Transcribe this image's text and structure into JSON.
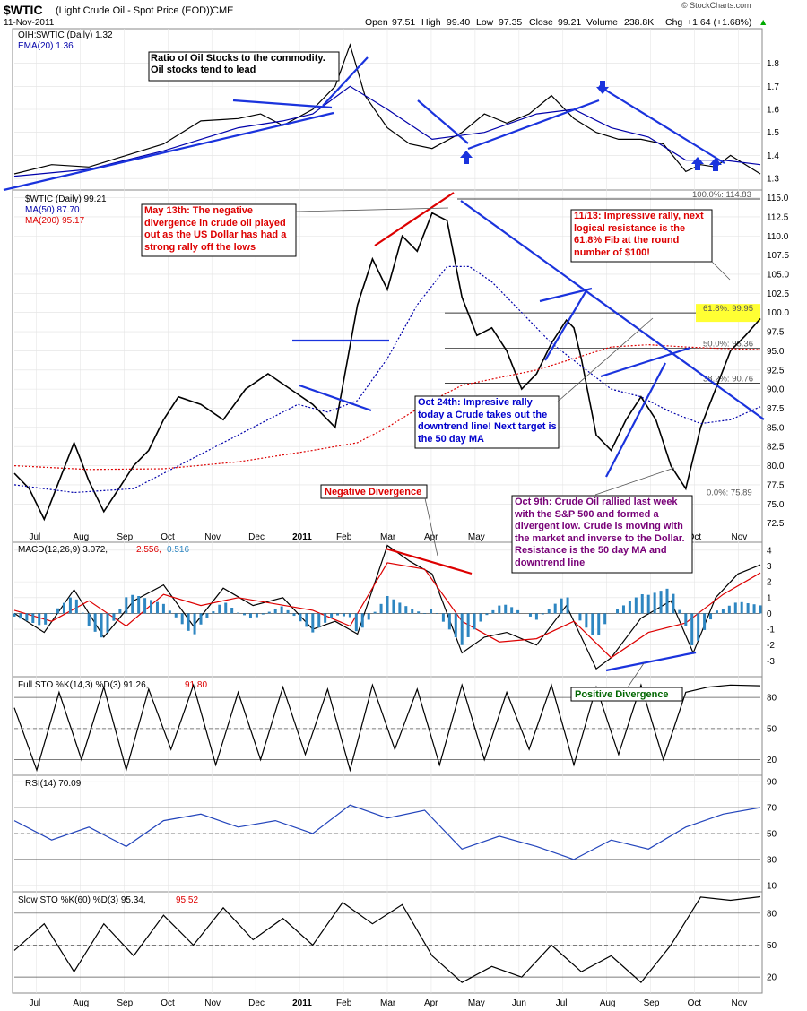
{
  "header": {
    "symbol": "$WTIC",
    "name": "(Light Crude Oil - Spot Price (EOD))",
    "exchange": "CME",
    "date": "11-Nov-2011",
    "open_label": "Open",
    "open": "97.51",
    "high_label": "High",
    "high": "99.40",
    "low_label": "Low",
    "low": "97.35",
    "close_label": "Close",
    "close": "99.21",
    "volume_label": "Volume",
    "volume": "238.8K",
    "chg_label": "Chg",
    "chg": "+1.64 (+1.68%)",
    "chg_arrow": "▲",
    "watermark": "© StockCharts.com"
  },
  "x_axis": {
    "months": [
      "Jul",
      "Aug",
      "Sep",
      "Oct",
      "Nov",
      "Dec",
      "2011",
      "Feb",
      "Mar",
      "Apr",
      "May",
      "Jun",
      "Jul",
      "Aug",
      "Sep",
      "Oct",
      "Nov"
    ]
  },
  "colors": {
    "price_up": "#000000",
    "price_down": "#cc0000",
    "ma50": "#0000aa",
    "ma200": "#dd0000",
    "trend": "#1a33dd",
    "annot_red": "#dd0000",
    "annot_blue": "#0000cc",
    "annot_purple": "#770077",
    "annot_green": "#006600",
    "macd_hist": "#2e86c1",
    "rsi_line": "#2244bb",
    "fib_highlight": "#ffff33"
  },
  "chart_data": [
    {
      "type": "line",
      "panel": "ratio",
      "legend": [
        "OIH:$WTIC (Daily) 1.32",
        "EMA(20) 1.36"
      ],
      "ylim": [
        1.25,
        1.95
      ],
      "yticks": [
        1.3,
        1.4,
        1.5,
        1.6,
        1.7,
        1.8
      ],
      "series": [
        {
          "name": "OIH:$WTIC (Daily)",
          "x": [
            0,
            0.05,
            0.1,
            0.15,
            0.2,
            0.25,
            0.3,
            0.33,
            0.36,
            0.4,
            0.43,
            0.45,
            0.47,
            0.5,
            0.53,
            0.56,
            0.6,
            0.63,
            0.66,
            0.69,
            0.72,
            0.75,
            0.78,
            0.81,
            0.84,
            0.87,
            0.9,
            0.92,
            0.94,
            0.96,
            0.98,
            1.0
          ],
          "values": [
            1.32,
            1.36,
            1.35,
            1.4,
            1.45,
            1.55,
            1.56,
            1.58,
            1.53,
            1.6,
            1.7,
            1.88,
            1.66,
            1.52,
            1.45,
            1.43,
            1.5,
            1.58,
            1.54,
            1.58,
            1.66,
            1.56,
            1.5,
            1.47,
            1.47,
            1.45,
            1.33,
            1.36,
            1.35,
            1.4,
            1.36,
            1.32
          ]
        },
        {
          "name": "EMA(20)",
          "x": [
            0,
            0.1,
            0.2,
            0.3,
            0.36,
            0.4,
            0.45,
            0.5,
            0.56,
            0.63,
            0.7,
            0.75,
            0.8,
            0.85,
            0.9,
            0.95,
            1.0
          ],
          "values": [
            1.31,
            1.34,
            1.42,
            1.52,
            1.55,
            1.58,
            1.7,
            1.6,
            1.47,
            1.5,
            1.58,
            1.6,
            1.52,
            1.48,
            1.38,
            1.38,
            1.36
          ]
        }
      ],
      "annotations": [
        "Ratio of Oil Stocks to the commodity.",
        "Oil stocks tend to lead"
      ]
    },
    {
      "type": "line",
      "panel": "price",
      "legend": [
        "$WTIC (Daily) 99.21",
        "MA(50) 87.70",
        "MA(200) 95.17"
      ],
      "ylim": [
        70,
        116
      ],
      "yticks": [
        72.5,
        75.0,
        77.5,
        80.0,
        82.5,
        85.0,
        87.5,
        90.0,
        92.5,
        95.0,
        97.5,
        100.0,
        102.5,
        105.0,
        107.5,
        110.0,
        112.5,
        115.0
      ],
      "fib_levels": [
        {
          "label": "100.0%: 114.83",
          "value": 114.83
        },
        {
          "label": "61.8%: 99.95",
          "value": 99.95
        },
        {
          "label": "50.0%: 95.36",
          "value": 95.36
        },
        {
          "label": "38.2%: 90.76",
          "value": 90.76
        },
        {
          "label": "0.0%: 75.89",
          "value": 75.89
        }
      ],
      "series": [
        {
          "name": "$WTIC (Daily)",
          "x": [
            0,
            0.02,
            0.04,
            0.06,
            0.08,
            0.1,
            0.12,
            0.14,
            0.16,
            0.18,
            0.2,
            0.22,
            0.25,
            0.28,
            0.31,
            0.34,
            0.37,
            0.4,
            0.43,
            0.46,
            0.48,
            0.5,
            0.52,
            0.54,
            0.56,
            0.58,
            0.6,
            0.62,
            0.64,
            0.66,
            0.68,
            0.7,
            0.72,
            0.74,
            0.75,
            0.76,
            0.78,
            0.8,
            0.82,
            0.84,
            0.86,
            0.88,
            0.9,
            0.92,
            0.94,
            0.96,
            0.98,
            1.0
          ],
          "values": [
            79,
            77,
            73,
            78,
            83,
            78,
            74,
            77,
            80,
            82,
            86,
            89,
            88,
            86,
            90,
            92,
            90,
            88,
            85,
            101,
            107,
            103,
            110,
            108,
            113,
            112,
            102,
            97,
            98,
            95,
            90,
            92,
            96,
            99,
            98,
            94,
            84,
            82,
            86,
            89,
            86,
            80,
            77,
            85,
            90,
            95,
            97,
            99.2
          ]
        },
        {
          "name": "MA(50)",
          "x": [
            0,
            0.08,
            0.16,
            0.24,
            0.32,
            0.38,
            0.42,
            0.46,
            0.5,
            0.54,
            0.58,
            0.61,
            0.64,
            0.68,
            0.72,
            0.76,
            0.8,
            0.84,
            0.88,
            0.92,
            0.96,
            1.0
          ],
          "values": [
            77.5,
            76.5,
            77,
            81,
            85,
            88,
            87,
            88.5,
            94,
            101,
            106,
            106,
            104,
            100,
            96,
            93,
            90,
            89,
            87,
            85.5,
            86,
            87.7
          ]
        },
        {
          "name": "MA(200)",
          "x": [
            0,
            0.1,
            0.2,
            0.3,
            0.4,
            0.46,
            0.5,
            0.55,
            0.6,
            0.65,
            0.7,
            0.75,
            0.8,
            0.85,
            0.9,
            0.95,
            1.0
          ],
          "values": [
            80,
            79.5,
            79.6,
            80.5,
            82,
            83,
            85,
            88,
            90.5,
            91.5,
            92.5,
            94,
            95.5,
            95.8,
            95.5,
            95.3,
            95.17
          ]
        }
      ],
      "annotations": [
        "May 13th: The negative divergence in crude oil played out as the US Dollar has had a strong rally off the lows",
        "11/13: Impressive rally, next logical resistance is the 61.8% Fib at the round number of $100!",
        "Oct 24th: Impresive rally today a Crude takes out the downtrend line! Next target is the 50 day MA",
        "Oct 9th: Crude Oil rallied last week with the S&P 500 and formed a divergent low. Crude is moving with the market and inverse to the Dollar. Resistance is the 50 day MA and downtrend line",
        "Negative Divergence",
        "Positive Divergence"
      ]
    },
    {
      "type": "line",
      "panel": "macd",
      "legend": [
        "MACD(12,26,9) 3.072,",
        "2.556,",
        "0.516"
      ],
      "ylim": [
        -4,
        4.5
      ],
      "yticks": [
        -3,
        -2,
        -1,
        0,
        1,
        2,
        3,
        4
      ],
      "series": [
        {
          "name": "MACD",
          "x": [
            0,
            0.04,
            0.08,
            0.12,
            0.16,
            0.2,
            0.24,
            0.28,
            0.32,
            0.36,
            0.4,
            0.43,
            0.46,
            0.5,
            0.53,
            0.56,
            0.6,
            0.63,
            0.66,
            0.7,
            0.74,
            0.78,
            0.8,
            0.84,
            0.88,
            0.91,
            0.94,
            0.97,
            1.0
          ],
          "values": [
            0,
            -1.2,
            1.5,
            -1.5,
            0.8,
            1.8,
            -0.8,
            1.6,
            0.5,
            1.0,
            -1.0,
            -0.5,
            -1.3,
            4.3,
            3.3,
            2.5,
            -2.5,
            -1.5,
            -1.2,
            -2.0,
            0.5,
            -3.5,
            -2.8,
            -0.3,
            0.8,
            -2.5,
            1.0,
            2.5,
            3.07
          ]
        },
        {
          "name": "Signal",
          "x": [
            0,
            0.05,
            0.1,
            0.15,
            0.2,
            0.25,
            0.3,
            0.35,
            0.4,
            0.45,
            0.5,
            0.55,
            0.6,
            0.65,
            0.7,
            0.75,
            0.8,
            0.85,
            0.9,
            0.95,
            1.0
          ],
          "values": [
            0.2,
            -0.5,
            0.8,
            -0.8,
            1.2,
            0.5,
            1.0,
            0.6,
            0.2,
            -0.8,
            3.2,
            2.8,
            -0.5,
            -1.8,
            -1.6,
            -0.5,
            -2.8,
            -1.2,
            -0.6,
            1.2,
            2.56
          ]
        }
      ]
    },
    {
      "type": "line",
      "panel": "full_sto",
      "legend": [
        "Full STO %K(14,3) %D(3) 91.26,",
        "91.80"
      ],
      "ylim": [
        5,
        100
      ],
      "yticks": [
        20,
        50,
        80
      ],
      "series": [
        {
          "name": "%K",
          "x": [
            0,
            0.03,
            0.06,
            0.09,
            0.12,
            0.15,
            0.18,
            0.21,
            0.24,
            0.27,
            0.3,
            0.33,
            0.36,
            0.39,
            0.42,
            0.45,
            0.48,
            0.51,
            0.54,
            0.57,
            0.6,
            0.63,
            0.66,
            0.69,
            0.72,
            0.75,
            0.78,
            0.81,
            0.84,
            0.87,
            0.9,
            0.93,
            0.96,
            1.0
          ],
          "values": [
            70,
            10,
            85,
            20,
            90,
            10,
            88,
            30,
            92,
            15,
            85,
            20,
            90,
            25,
            88,
            10,
            92,
            30,
            88,
            15,
            92,
            20,
            85,
            30,
            92,
            15,
            90,
            25,
            92,
            20,
            85,
            90,
            92,
            91.3
          ]
        }
      ]
    },
    {
      "type": "line",
      "panel": "rsi",
      "legend": [
        "RSI(14) 70.09"
      ],
      "ylim": [
        5,
        95
      ],
      "yticks": [
        10,
        30,
        50,
        70,
        90
      ],
      "series": [
        {
          "name": "RSI(14)",
          "x": [
            0,
            0.05,
            0.1,
            0.15,
            0.2,
            0.25,
            0.3,
            0.35,
            0.4,
            0.45,
            0.5,
            0.55,
            0.6,
            0.65,
            0.7,
            0.75,
            0.8,
            0.85,
            0.9,
            0.95,
            1.0
          ],
          "values": [
            60,
            45,
            55,
            40,
            60,
            65,
            55,
            60,
            50,
            72,
            62,
            68,
            38,
            48,
            40,
            30,
            45,
            38,
            55,
            65,
            70.09
          ]
        }
      ]
    },
    {
      "type": "line",
      "panel": "slow_sto",
      "legend": [
        "Slow STO %K(60) %D(3) 95.34,",
        "95.52"
      ],
      "ylim": [
        5,
        100
      ],
      "yticks": [
        20,
        50,
        80
      ],
      "series": [
        {
          "name": "%K",
          "x": [
            0,
            0.04,
            0.08,
            0.12,
            0.16,
            0.2,
            0.24,
            0.28,
            0.32,
            0.36,
            0.4,
            0.44,
            0.48,
            0.52,
            0.56,
            0.6,
            0.64,
            0.68,
            0.72,
            0.76,
            0.8,
            0.84,
            0.88,
            0.92,
            0.96,
            1.0
          ],
          "values": [
            45,
            70,
            25,
            70,
            40,
            78,
            50,
            85,
            55,
            75,
            50,
            90,
            70,
            88,
            40,
            15,
            30,
            20,
            50,
            25,
            40,
            15,
            50,
            95,
            92,
            95.34
          ]
        }
      ]
    }
  ]
}
